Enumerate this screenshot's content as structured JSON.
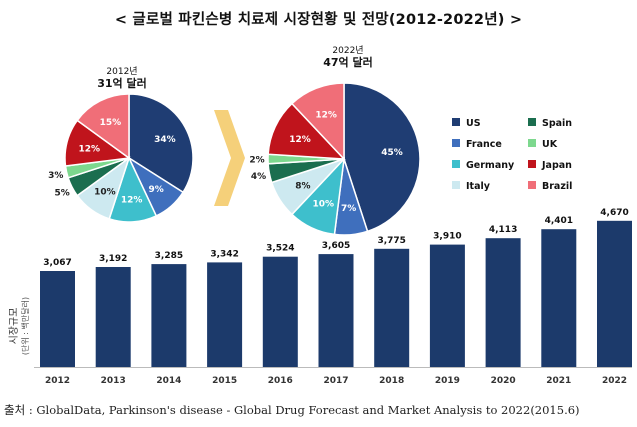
{
  "title": "< 글로벌 파킨슨병 치료제 시장현황 및 전망(2012-2022년) >",
  "source": "출처 : GlobalData, Parkinson's disease - Global Drug Forecast and Market Analysis to 2022(2015.6)",
  "colors": {
    "US": "#1f3d73",
    "France": "#3f6fbd",
    "Germany": "#3ebfcc",
    "Italy": "#cde9f0",
    "Spain": "#1b6e4f",
    "UK": "#7dd88e",
    "Japan": "#c0141c",
    "Brazil": "#f06e78",
    "bar": "#1c3a6b",
    "arrow": "#f5d07a"
  },
  "chart_data": [
    {
      "type": "pie",
      "title_year": "2012년",
      "title_value": "31억 달러",
      "slices": [
        {
          "name": "US",
          "value": 34,
          "label": "34%"
        },
        {
          "name": "France",
          "value": 9,
          "label": "9%"
        },
        {
          "name": "Germany",
          "value": 12,
          "label": "12%"
        },
        {
          "name": "Italy",
          "value": 10,
          "label": "10%"
        },
        {
          "name": "Spain",
          "value": 5,
          "label": "5%"
        },
        {
          "name": "UK",
          "value": 3,
          "label": "3%"
        },
        {
          "name": "Japan",
          "value": 12,
          "label": "12%"
        },
        {
          "name": "Brazil",
          "value": 15,
          "label": "15%"
        }
      ]
    },
    {
      "type": "pie",
      "title_year": "2022년",
      "title_value": "47억 달러",
      "slices": [
        {
          "name": "US",
          "value": 45,
          "label": "45%"
        },
        {
          "name": "France",
          "value": 7,
          "label": "7%"
        },
        {
          "name": "Germany",
          "value": 10,
          "label": "10%"
        },
        {
          "name": "Italy",
          "value": 8,
          "label": "8%"
        },
        {
          "name": "Spain",
          "value": 4,
          "label": "4%"
        },
        {
          "name": "UK",
          "value": 2,
          "label": "2%"
        },
        {
          "name": "Japan",
          "value": 12,
          "label": "12%"
        },
        {
          "name": "Brazil",
          "value": 12,
          "label": "12%"
        }
      ]
    },
    {
      "type": "bar",
      "ylabel": "시장규모",
      "yunit": "(단위 : 백만달러)",
      "categories": [
        "2012",
        "2013",
        "2014",
        "2015",
        "2016",
        "2017",
        "2018",
        "2019",
        "2020",
        "2021",
        "2022"
      ],
      "values": [
        3067,
        3192,
        3285,
        3342,
        3524,
        3605,
        3775,
        3910,
        4113,
        4401,
        4670
      ],
      "value_labels": [
        "3,067",
        "3,192",
        "3,285",
        "3,342",
        "3,524",
        "3,605",
        "3,775",
        "3,910",
        "4,113",
        "4,401",
        "4,670"
      ]
    }
  ],
  "legend": [
    "US",
    "Spain",
    "France",
    "UK",
    "Germany",
    "Japan",
    "Italy",
    "Brazil"
  ]
}
